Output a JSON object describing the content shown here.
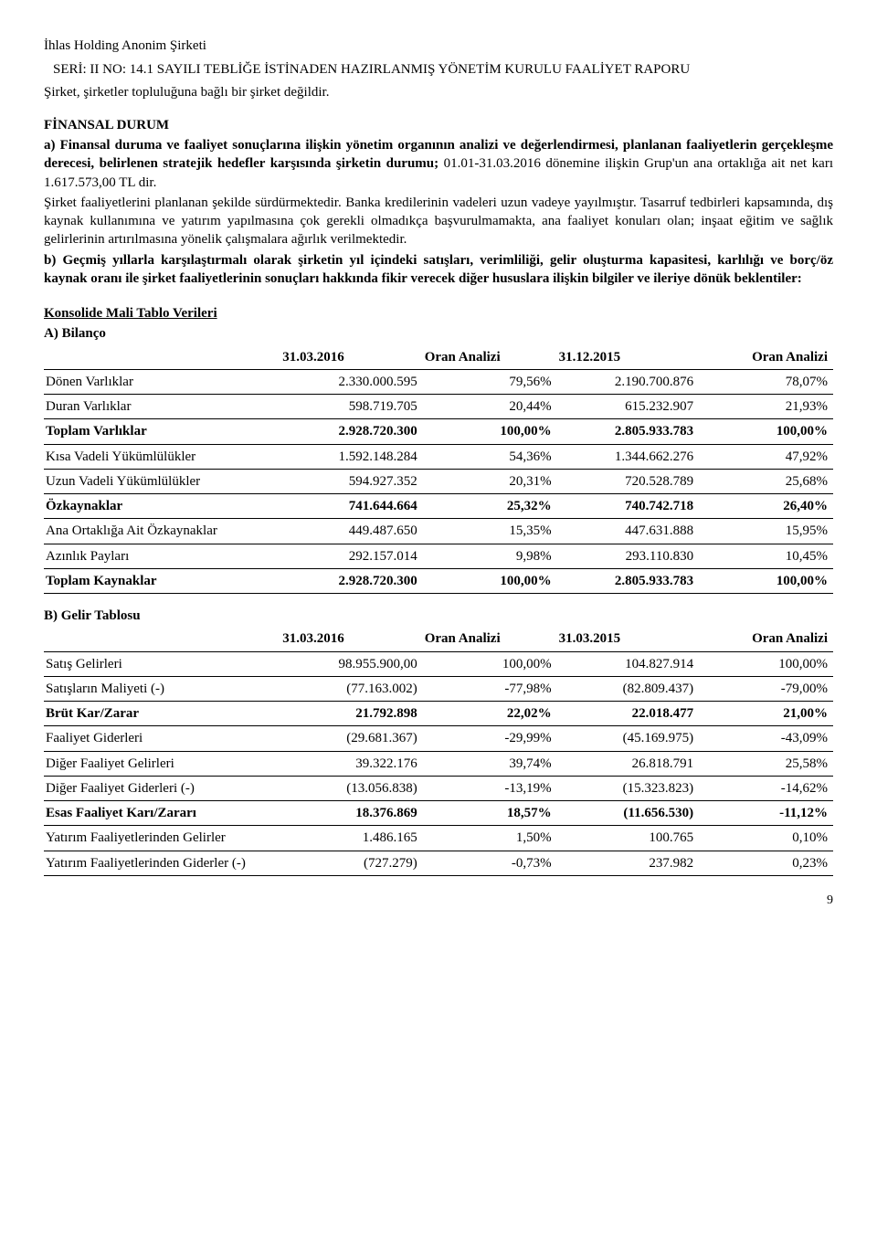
{
  "header": {
    "company": "İhlas Holding Anonim Şirketi",
    "seri": "SERİ: II NO: 14.1 SAYILI TEBLİĞE İSTİNADEN HAZIRLANMIŞ YÖNETİM KURULU FAALİYET RAPORU"
  },
  "intro": {
    "p1": "Şirket, şirketler topluluğuna bağlı bir şirket değildir.",
    "finansal_title": "FİNANSAL DURUM",
    "a_bold": "a) Finansal duruma ve faaliyet sonuçlarına ilişkin yönetim organının analizi ve değerlendirmesi, planlanan faaliyetlerin gerçekleşme derecesi, belirlenen stratejik hedefler karşısında şirketin durumu;",
    "a_text": " 01.01-31.03.2016 dönemine ilişkin Grup'un ana ortaklığa ait net karı 1.617.573,00 TL dir.",
    "a_text2": "Şirket faaliyetlerini planlanan şekilde sürdürmektedir. Banka kredilerinin vadeleri uzun vadeye yayılmıştır. Tasarruf tedbirleri kapsamında, dış kaynak kullanımına ve yatırım yapılmasına çok gerekli olmadıkça başvurulmamakta, ana faaliyet konuları olan; inşaat eğitim ve sağlık gelirlerinin artırılmasına yönelik çalışmalara ağırlık verilmektedir.",
    "b_bold": "b) Geçmiş yıllarla karşılaştırmalı olarak şirketin yıl içindeki satışları, verimliliği, gelir oluşturma kapasitesi, karlılığı ve borç/öz kaynak oranı ile şirket faaliyetlerinin sonuçları hakkında fikir verecek diğer hususlara ilişkin bilgiler ve ileriye dönük beklentiler:"
  },
  "konsolide_title": "Konsolide Mali Tablo Verileri",
  "tableA": {
    "title": "A) Bilanço",
    "headers": [
      "",
      "31.03.2016",
      "Oran Analizi",
      "31.12.2015",
      "Oran Analizi"
    ],
    "rows": [
      {
        "label": "Dönen Varlıklar",
        "v1": "2.330.000.595",
        "p1": "79,56%",
        "v2": "2.190.700.876",
        "p2": "78,07%",
        "bold": false
      },
      {
        "label": "Duran Varlıklar",
        "v1": "598.719.705",
        "p1": "20,44%",
        "v2": "615.232.907",
        "p2": "21,93%",
        "bold": false
      },
      {
        "label": "Toplam Varlıklar",
        "v1": "2.928.720.300",
        "p1": "100,00%",
        "v2": "2.805.933.783",
        "p2": "100,00%",
        "bold": true
      },
      {
        "label": "Kısa Vadeli Yükümlülükler",
        "v1": "1.592.148.284",
        "p1": "54,36%",
        "v2": "1.344.662.276",
        "p2": "47,92%",
        "bold": false
      },
      {
        "label": "Uzun Vadeli Yükümlülükler",
        "v1": "594.927.352",
        "p1": "20,31%",
        "v2": "720.528.789",
        "p2": "25,68%",
        "bold": false
      },
      {
        "label": "Özkaynaklar",
        "v1": "741.644.664",
        "p1": "25,32%",
        "v2": "740.742.718",
        "p2": "26,40%",
        "bold": true
      },
      {
        "label": "Ana Ortaklığa Ait Özkaynaklar",
        "v1": "449.487.650",
        "p1": "15,35%",
        "v2": "447.631.888",
        "p2": "15,95%",
        "bold": false
      },
      {
        "label": "Azınlık Payları",
        "v1": "292.157.014",
        "p1": "9,98%",
        "v2": "293.110.830",
        "p2": "10,45%",
        "bold": false
      },
      {
        "label": "Toplam Kaynaklar",
        "v1": "2.928.720.300",
        "p1": "100,00%",
        "v2": "2.805.933.783",
        "p2": "100,00%",
        "bold": true
      }
    ]
  },
  "tableB": {
    "title": "B) Gelir Tablosu",
    "headers": [
      "",
      "31.03.2016",
      "Oran Analizi",
      "31.03.2015",
      "Oran Analizi"
    ],
    "rows": [
      {
        "label": "Satış Gelirleri",
        "v1": "98.955.900,00",
        "p1": "100,00%",
        "v2": "104.827.914",
        "p2": "100,00%",
        "bold": false
      },
      {
        "label": "Satışların Maliyeti (-)",
        "v1": "(77.163.002)",
        "p1": "-77,98%",
        "v2": "(82.809.437)",
        "p2": "-79,00%",
        "bold": false
      },
      {
        "label": "Brüt Kar/Zarar",
        "v1": "21.792.898",
        "p1": "22,02%",
        "v2": "22.018.477",
        "p2": "21,00%",
        "bold": true
      },
      {
        "label": "Faaliyet Giderleri",
        "v1": "(29.681.367)",
        "p1": "-29,99%",
        "v2": "(45.169.975)",
        "p2": "-43,09%",
        "bold": false
      },
      {
        "label": "Diğer Faaliyet Gelirleri",
        "v1": "39.322.176",
        "p1": "39,74%",
        "v2": "26.818.791",
        "p2": "25,58%",
        "bold": false
      },
      {
        "label": "Diğer Faaliyet Giderleri (-)",
        "v1": "(13.056.838)",
        "p1": "-13,19%",
        "v2": "(15.323.823)",
        "p2": "-14,62%",
        "bold": false
      },
      {
        "label": "Esas Faaliyet Karı/Zararı",
        "v1": "18.376.869",
        "p1": "18,57%",
        "v2": "(11.656.530)",
        "p2": "-11,12%",
        "bold": true
      },
      {
        "label": "Yatırım Faaliyetlerinden Gelirler",
        "v1": "1.486.165",
        "p1": "1,50%",
        "v2": "100.765",
        "p2": "0,10%",
        "bold": false
      },
      {
        "label": "Yatırım Faaliyetlerinden Giderler (-)",
        "v1": "(727.279)",
        "p1": "-0,73%",
        "v2": "237.982",
        "p2": "0,23%",
        "bold": false
      }
    ]
  },
  "page_number": "9"
}
